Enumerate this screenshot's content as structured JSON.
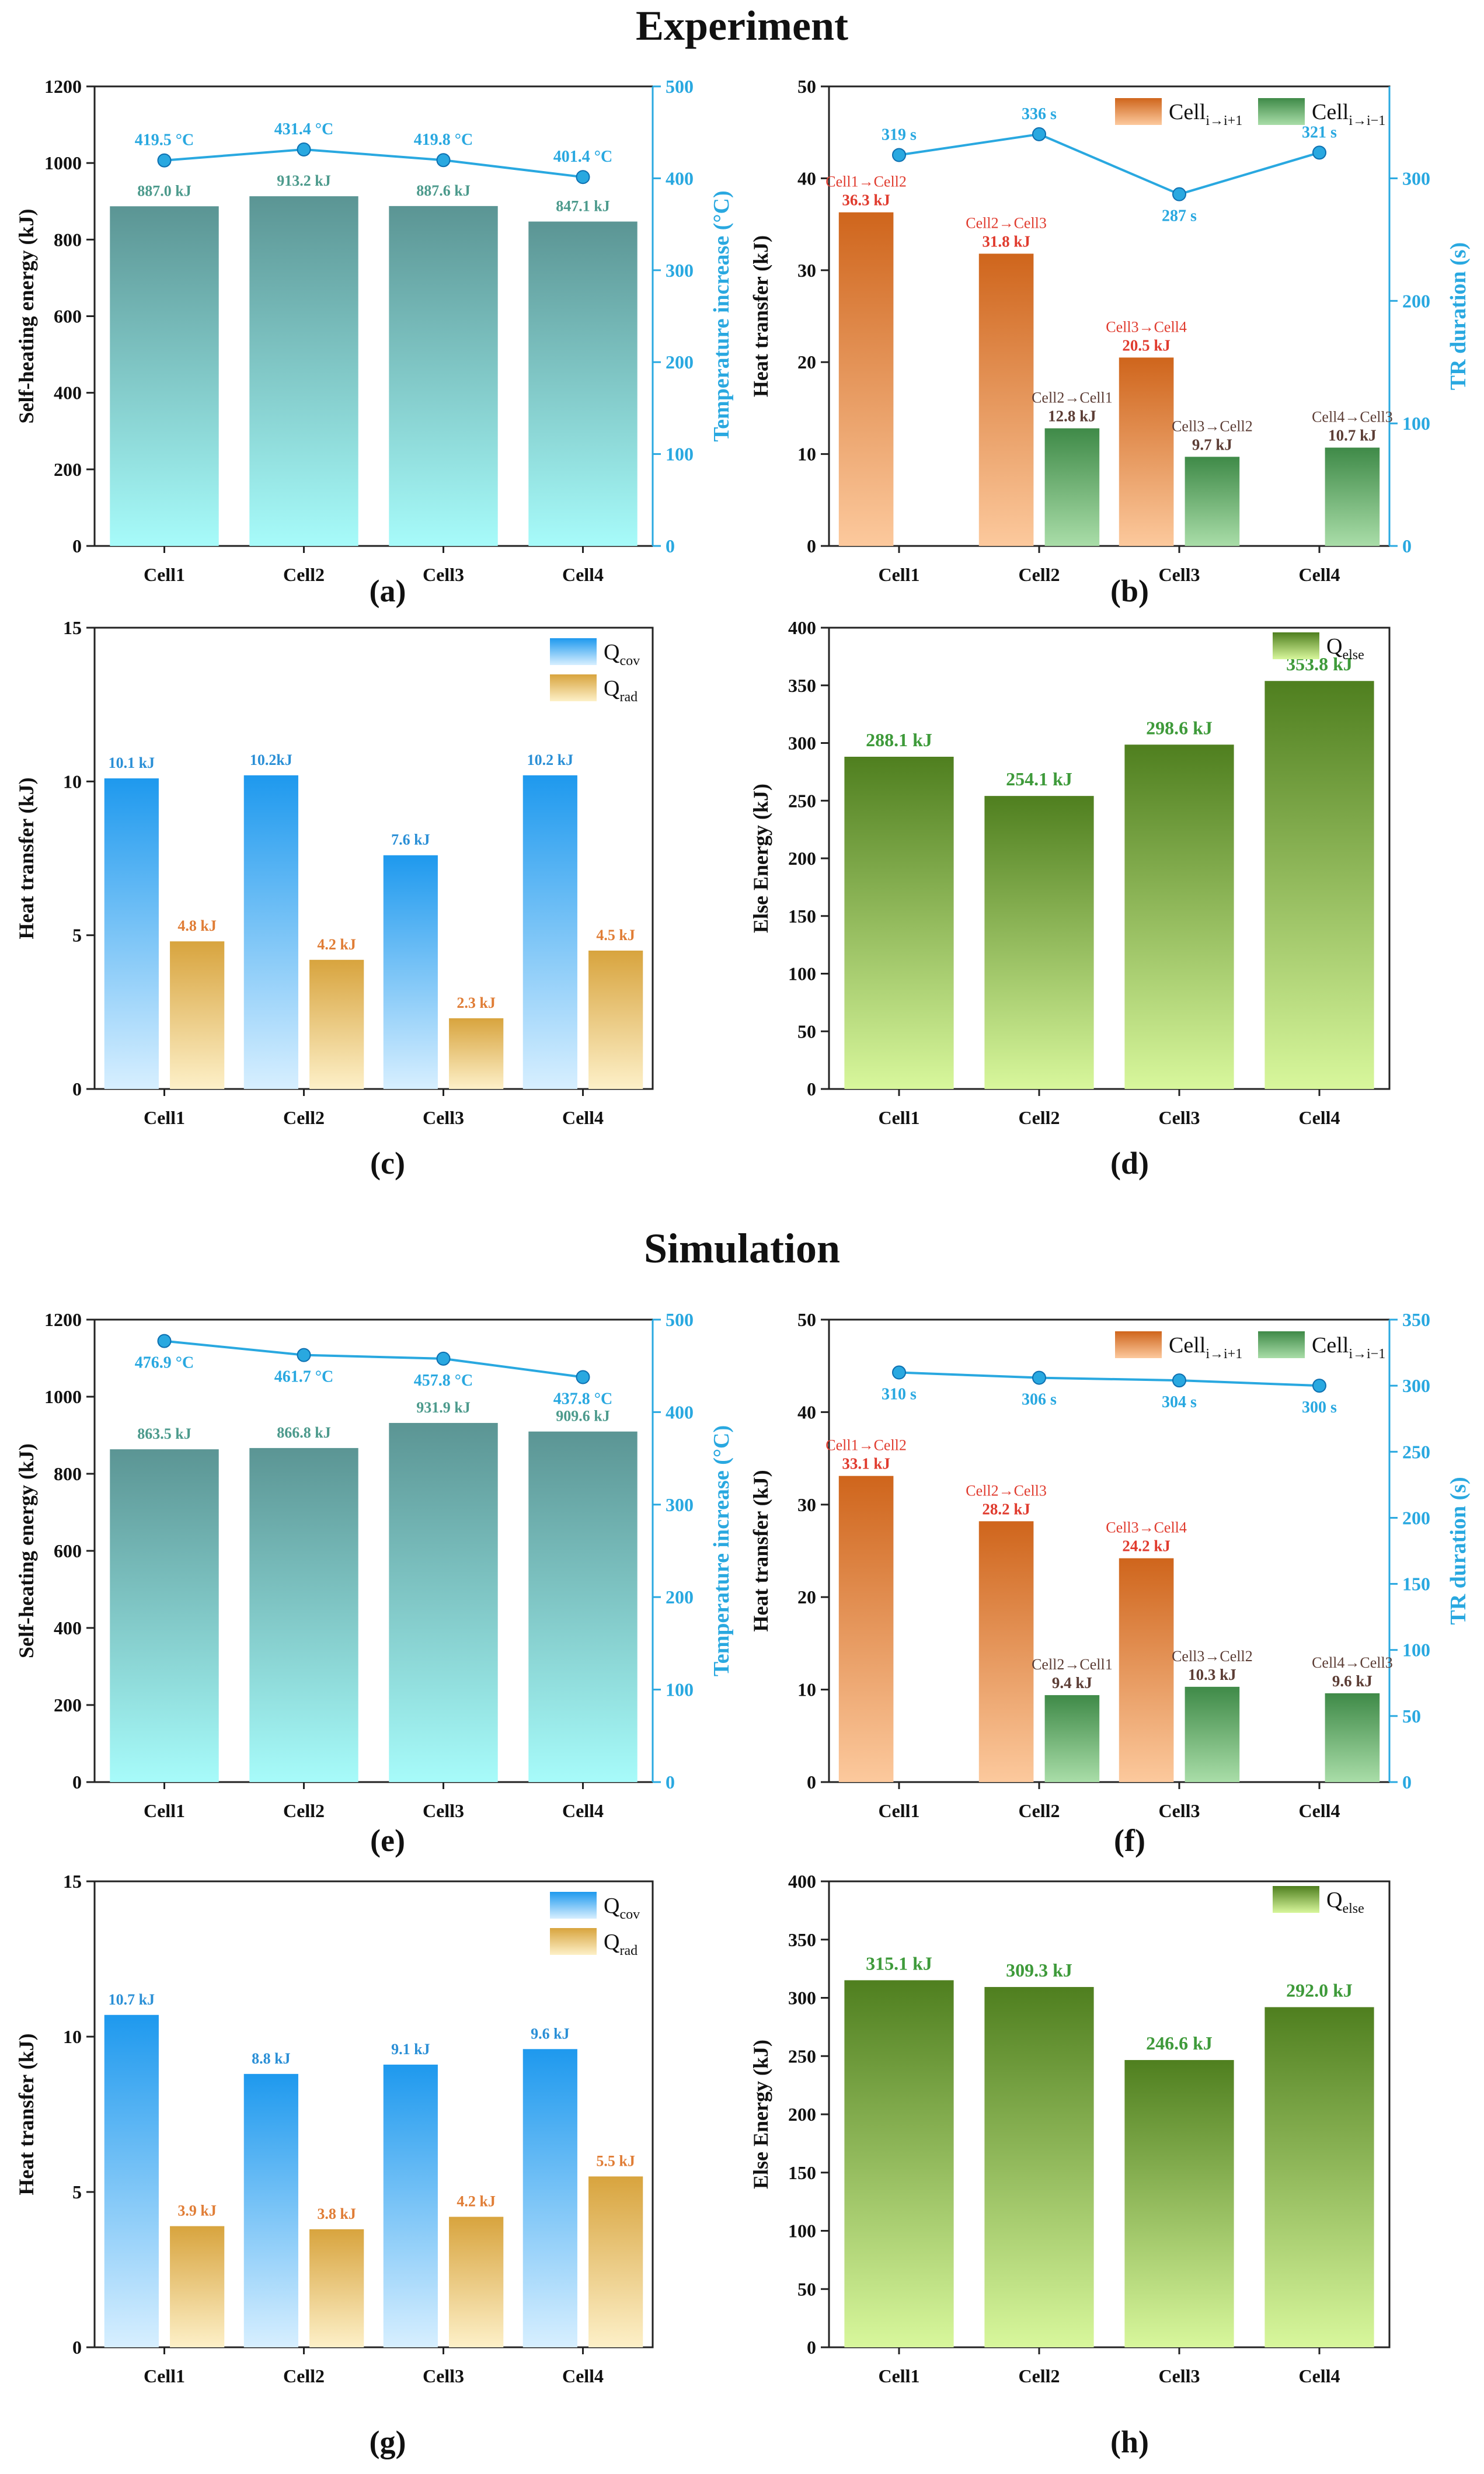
{
  "sections": {
    "experiment": "Experiment",
    "simulation": "Simulation"
  },
  "colors": {
    "teal_top": "#5b9594",
    "teal_bottom": "#a7fbfa",
    "orange_top": "#cf651c",
    "orange_bottom": "#fcc99d",
    "green_top": "#3f8a48",
    "green_bottom": "#a9dda8",
    "blue_top": "#1e99ee",
    "blue_bottom": "#d7efff",
    "gold_top": "#d8a43e",
    "gold_bottom": "#fdf0c8",
    "olive_top": "#4f7f1f",
    "olive_bottom": "#d8f79c",
    "line_blue": "#29a8e0",
    "label_red": "#e03b2e",
    "label_dark": "#5c3d35",
    "label_teal": "#4c9a8c",
    "label_blue": "#2a8fd6",
    "label_orange": "#e07d36",
    "label_green": "#3e9a3a"
  },
  "chart_data": [
    {
      "panel": "(a)",
      "type": "bar",
      "categories": [
        "Cell1",
        "Cell2",
        "Cell3",
        "Cell4"
      ],
      "values": [
        887.0,
        913.2,
        887.6,
        847.1
      ],
      "bar_labels": [
        "887.0 kJ",
        "913.2 kJ",
        "887.6 kJ",
        "847.1 kJ"
      ],
      "ylabel": "Self-heating energy (kJ)",
      "ylim": [
        0,
        1200
      ],
      "yticks": [
        0,
        200,
        400,
        600,
        800,
        1000,
        1200
      ],
      "secondary": {
        "type": "line",
        "values": [
          419.5,
          431.4,
          419.8,
          401.4
        ],
        "point_labels": [
          "419.5 °C",
          "431.4 °C",
          "419.8 °C",
          "401.4 °C"
        ],
        "ylabel": "Temperature increase (°C)",
        "ylim": [
          0,
          500
        ],
        "yticks": [
          0,
          100,
          200,
          300,
          400,
          500
        ]
      }
    },
    {
      "panel": "(b)",
      "type": "bar",
      "categories": [
        "Cell1",
        "Cell2",
        "Cell3",
        "Cell4"
      ],
      "ylabel": "Heat transfer (kJ)",
      "ylim": [
        0,
        50
      ],
      "yticks": [
        0,
        10,
        20,
        30,
        40,
        50
      ],
      "legend": [
        {
          "main": "Cell",
          "sub": "i→i+1"
        },
        {
          "main": "Cell",
          "sub": "i→i−1"
        }
      ],
      "series": [
        {
          "name": "Cell i→i+1",
          "values": [
            36.3,
            31.8,
            20.5,
            null
          ],
          "value_labels": [
            "36.3 kJ",
            "31.8 kJ",
            "20.5 kJ",
            ""
          ],
          "path_labels": [
            "Cell1→Cell2",
            "Cell2→Cell3",
            "Cell3→Cell4",
            ""
          ]
        },
        {
          "name": "Cell i→i−1",
          "values": [
            null,
            12.8,
            9.7,
            10.7
          ],
          "value_labels": [
            "",
            "12.8 kJ",
            "9.7 kJ",
            "10.7 kJ"
          ],
          "path_labels": [
            "",
            "Cell2→Cell1",
            "Cell3→Cell2",
            "Cell4→Cell3"
          ]
        }
      ],
      "secondary": {
        "type": "line",
        "values": [
          319,
          336,
          287,
          321
        ],
        "point_labels": [
          "319 s",
          "336 s",
          "287 s",
          "321 s"
        ],
        "ylabel": "TR duration (s)",
        "ylim": [
          0,
          375
        ],
        "yticks": [
          0,
          100,
          200,
          300
        ]
      }
    },
    {
      "panel": "(c)",
      "type": "bar",
      "categories": [
        "Cell1",
        "Cell2",
        "Cell3",
        "Cell4"
      ],
      "ylabel": "Heat transfer (kJ)",
      "ylim": [
        0,
        15
      ],
      "yticks": [
        0,
        5,
        10,
        15
      ],
      "legend": [
        {
          "main": "Q",
          "sub": "cov"
        },
        {
          "main": "Q",
          "sub": "rad"
        }
      ],
      "series": [
        {
          "name": "Qcov",
          "values": [
            10.1,
            10.2,
            7.6,
            10.2
          ],
          "value_labels": [
            "10.1 kJ",
            "10.2kJ",
            "7.6 kJ",
            "10.2 kJ"
          ]
        },
        {
          "name": "Qrad",
          "values": [
            4.8,
            4.2,
            2.3,
            4.5
          ],
          "value_labels": [
            "4.8 kJ",
            "4.2 kJ",
            "2.3 kJ",
            "4.5 kJ"
          ]
        }
      ]
    },
    {
      "panel": "(d)",
      "type": "bar",
      "categories": [
        "Cell1",
        "Cell2",
        "Cell3",
        "Cell4"
      ],
      "ylabel": "Else Energy (kJ)",
      "ylim": [
        0,
        400
      ],
      "yticks": [
        0,
        50,
        100,
        150,
        200,
        250,
        300,
        350,
        400
      ],
      "legend": [
        {
          "main": "Q",
          "sub": "else"
        }
      ],
      "values": [
        288.1,
        254.1,
        298.6,
        353.8
      ],
      "bar_labels": [
        "288.1 kJ",
        "254.1 kJ",
        "298.6 kJ",
        "353.8 kJ"
      ]
    },
    {
      "panel": "(e)",
      "type": "bar",
      "categories": [
        "Cell1",
        "Cell2",
        "Cell3",
        "Cell4"
      ],
      "values": [
        863.5,
        866.8,
        931.9,
        909.6
      ],
      "bar_labels": [
        "863.5 kJ",
        "866.8 kJ",
        "931.9 kJ",
        "909.6 kJ"
      ],
      "ylabel": "Self-heating energy (kJ)",
      "ylim": [
        0,
        1200
      ],
      "yticks": [
        0,
        200,
        400,
        600,
        800,
        1000,
        1200
      ],
      "secondary": {
        "type": "line",
        "values": [
          476.9,
          461.7,
          457.8,
          437.8
        ],
        "point_labels": [
          "476.9 °C",
          "461.7 °C",
          "457.8 °C",
          "437.8 °C"
        ],
        "ylabel": "Temperature increase (°C)",
        "ylim": [
          0,
          500
        ],
        "yticks": [
          0,
          100,
          200,
          300,
          400,
          500
        ]
      }
    },
    {
      "panel": "(f)",
      "type": "bar",
      "categories": [
        "Cell1",
        "Cell2",
        "Cell3",
        "Cell4"
      ],
      "ylabel": "Heat transfer (kJ)",
      "ylim": [
        0,
        50
      ],
      "yticks": [
        0,
        10,
        20,
        30,
        40,
        50
      ],
      "legend": [
        {
          "main": "Cell",
          "sub": "i→i+1"
        },
        {
          "main": "Cell",
          "sub": "i→i−1"
        }
      ],
      "series": [
        {
          "name": "Cell i→i+1",
          "values": [
            33.1,
            28.2,
            24.2,
            null
          ],
          "value_labels": [
            "33.1 kJ",
            "28.2 kJ",
            "24.2 kJ",
            ""
          ],
          "path_labels": [
            "Cell1→Cell2",
            "Cell2→Cell3",
            "Cell3→Cell4",
            ""
          ]
        },
        {
          "name": "Cell i→i−1",
          "values": [
            null,
            9.4,
            10.3,
            9.6
          ],
          "value_labels": [
            "",
            "9.4 kJ",
            "10.3 kJ",
            "9.6 kJ"
          ],
          "path_labels": [
            "",
            "Cell2→Cell1",
            "Cell3→Cell2",
            "Cell4→Cell3"
          ]
        }
      ],
      "secondary": {
        "type": "line",
        "values": [
          310,
          306,
          304,
          300
        ],
        "point_labels": [
          "310 s",
          "306 s",
          "304 s",
          "300 s"
        ],
        "ylabel": "TR duration (s)",
        "ylim": [
          0,
          350
        ],
        "yticks": [
          0,
          50,
          100,
          150,
          200,
          250,
          300,
          350
        ]
      }
    },
    {
      "panel": "(g)",
      "type": "bar",
      "categories": [
        "Cell1",
        "Cell2",
        "Cell3",
        "Cell4"
      ],
      "ylabel": "Heat transfer (kJ)",
      "ylim": [
        0,
        15
      ],
      "yticks": [
        0,
        5,
        10,
        15
      ],
      "legend": [
        {
          "main": "Q",
          "sub": "cov"
        },
        {
          "main": "Q",
          "sub": "rad"
        }
      ],
      "series": [
        {
          "name": "Qcov",
          "values": [
            10.7,
            8.8,
            9.1,
            9.6
          ],
          "value_labels": [
            "10.7 kJ",
            "8.8 kJ",
            "9.1 kJ",
            "9.6 kJ"
          ]
        },
        {
          "name": "Qrad",
          "values": [
            3.9,
            3.8,
            4.2,
            5.5
          ],
          "value_labels": [
            "3.9 kJ",
            "3.8 kJ",
            "4.2 kJ",
            "5.5 kJ"
          ]
        }
      ]
    },
    {
      "panel": "(h)",
      "type": "bar",
      "categories": [
        "Cell1",
        "Cell2",
        "Cell3",
        "Cell4"
      ],
      "ylabel": "Else Energy (kJ)",
      "ylim": [
        0,
        400
      ],
      "yticks": [
        0,
        50,
        100,
        150,
        200,
        250,
        300,
        350,
        400
      ],
      "legend": [
        {
          "main": "Q",
          "sub": "else"
        }
      ],
      "values": [
        315.1,
        309.3,
        246.6,
        292.0
      ],
      "bar_labels": [
        "315.1 kJ",
        "309.3 kJ",
        "246.6 kJ",
        "292.0 kJ"
      ]
    }
  ]
}
